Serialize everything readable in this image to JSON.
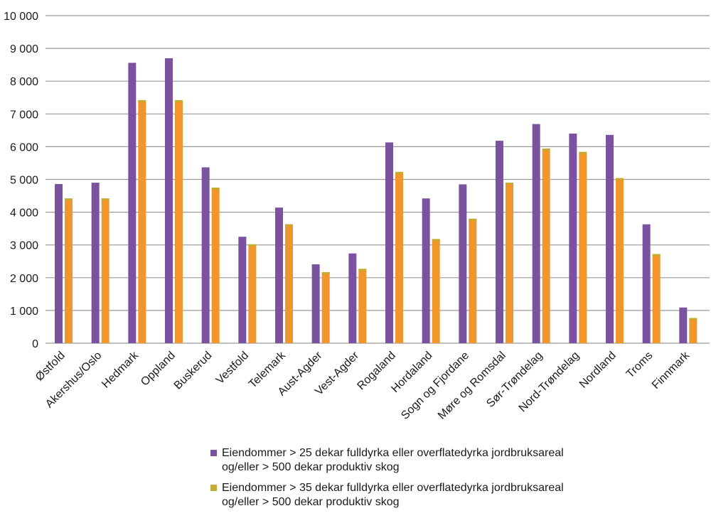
{
  "chart_data": {
    "type": "bar",
    "title": "",
    "xlabel": "",
    "ylabel": "",
    "ylim": [
      0,
      10000
    ],
    "yticks": [
      0,
      1000,
      2000,
      3000,
      4000,
      5000,
      6000,
      7000,
      8000,
      9000,
      10000
    ],
    "ytick_labels": [
      "0",
      "1 000",
      "2 000",
      "3 000",
      "4 000",
      "5 000",
      "6 000",
      "7 000",
      "8 000",
      "9 000",
      "10 000"
    ],
    "grid": true,
    "legend_position": "bottom",
    "categories": [
      "Østfold",
      "Akershus/Oslo",
      "Hedmark",
      "Oppland",
      "Buskerud",
      "Vestfold",
      "Telemark",
      "Aust-Agder",
      "Vest-Agder",
      "Rogaland",
      "Hordaland",
      "Sogn og Fjordane",
      "Møre og Romsdal",
      "Sør-Trøndelag",
      "Nord-Trøndelag",
      "Nordland",
      "Troms",
      "Finnmark"
    ],
    "series": [
      {
        "name": "Eiendommer > 25 dekar fulldyrka eller overflatedyrka jordbruksareal og/eller > 500 dekar produktiv skog",
        "legend_lines": [
          "Eiendommer > 25 dekar fulldyrka eller overflatedyrka jordbruksareal",
          "og/eller > 500 dekar produktiv skog"
        ],
        "color": "#7b52a0",
        "values": [
          4860,
          4900,
          8560,
          8700,
          5370,
          3250,
          4140,
          2410,
          2740,
          6130,
          4420,
          4850,
          6180,
          6690,
          6400,
          6360,
          3630,
          1090
        ]
      },
      {
        "name": "Eiendommer > 35 dekar fulldyrka eller overflatedyrka jordbruksareal og/eller > 500 dekar produktiv skog",
        "legend_lines": [
          "Eiendommer > 35 dekar fulldyrka eller overflatedyrka jordbruksareal",
          "og/eller > 500 dekar produktiv skog"
        ],
        "color": "#f0962c",
        "edge_color": "#c8a82e",
        "legend_color": "#c4ac3c",
        "values": [
          4420,
          4420,
          7420,
          7420,
          4750,
          3020,
          3630,
          2170,
          2270,
          5230,
          3180,
          3800,
          4900,
          5940,
          5840,
          5040,
          2720,
          770
        ]
      }
    ]
  },
  "legend": {
    "items": [
      {
        "text": "Eiendommer > 25 dekar fulldyrka eller overflatedyrka jordbruksareal\nog/eller > 500 dekar produktiv skog",
        "color": "#7b52a0"
      },
      {
        "text": "Eiendommer > 35 dekar fulldyrka eller overflatedyrka jordbruksareal\nog/eller > 500 dekar produktiv skog",
        "color": "#c4ac3c"
      }
    ]
  }
}
